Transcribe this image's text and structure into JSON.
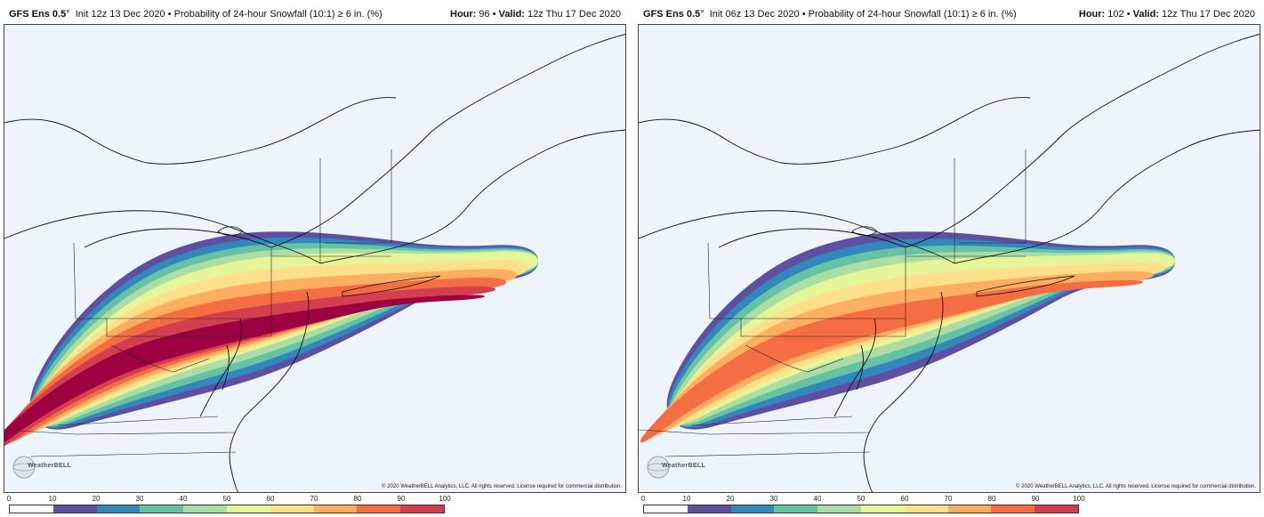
{
  "panels": [
    {
      "id": "left",
      "model": "GFS Ens 0.5",
      "degree": "°",
      "init": "Init 12z 13 Dec 2020",
      "product": "Probability of 24-hour Snowfall (10:1) ≥ 6 in. (%)",
      "hour_label": "Hour:",
      "hour": "96",
      "valid_label": "Valid:",
      "valid": "12z Thu 17 Dec 2020",
      "copyright": "© 2020 WeatherBELL Analytics, LLC. All rights reserved. License required for commercial distribution.",
      "logo": "WeatherBELL",
      "max_probability": 100
    },
    {
      "id": "right",
      "model": "GFS Ens 0.5",
      "degree": "°",
      "init": "Init 06z 13 Dec 2020",
      "product": "Probability of 24-hour Snowfall (10:1) ≥ 6 in. (%)",
      "hour_label": "Hour:",
      "hour": "102",
      "valid_label": "Valid:",
      "valid": "12z Thu 17 Dec 2020",
      "copyright": "© 2020 WeatherBELL Analytics, LLC. All rights reserved. License required for commercial distribution.",
      "logo": "WeatherBELL",
      "max_probability": 80
    }
  ],
  "colorbar": {
    "ticks": [
      "0",
      "10",
      "20",
      "30",
      "40",
      "50",
      "60",
      "70",
      "80",
      "90",
      "100"
    ],
    "colors": [
      "#ffffff",
      "#5e4fa2",
      "#3288bd",
      "#66c2a5",
      "#abdda4",
      "#e6f598",
      "#fee08b",
      "#fdae61",
      "#f46d43",
      "#d53e4f",
      "#9e0142"
    ]
  },
  "colors": {
    "map_bg": "#eef4fb",
    "coast": "#111111"
  }
}
